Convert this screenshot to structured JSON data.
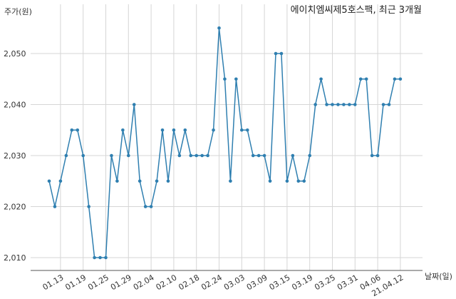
{
  "chart_data": {
    "type": "line",
    "title": "에이치엠씨제5호스팩, 최근 3개월",
    "xlabel": "날짜(일)",
    "ylabel": "주가(원)",
    "ylim": [
      2007,
      2058
    ],
    "yticks": [
      2010,
      2020,
      2030,
      2040,
      2050
    ],
    "ytick_labels": [
      "2,010",
      "2,020",
      "2,030",
      "2,040",
      "2,050"
    ],
    "grid": true,
    "line_color": "#2f7fb0",
    "x": [
      "01.11",
      "01.12",
      "01.13",
      "01.14",
      "01.15",
      "01.18",
      "01.19",
      "01.20",
      "01.21",
      "01.22",
      "01.25",
      "01.26",
      "01.27",
      "01.28",
      "01.29",
      "02.01",
      "02.02",
      "02.03",
      "02.04",
      "02.05",
      "02.08",
      "02.09",
      "02.10",
      "02.15",
      "02.16",
      "02.17",
      "02.18",
      "02.19",
      "02.22",
      "02.23",
      "02.24",
      "02.25",
      "02.26",
      "03.02",
      "03.03",
      "03.04",
      "03.05",
      "03.08",
      "03.09",
      "03.10",
      "03.11",
      "03.12",
      "03.15",
      "03.16",
      "03.17",
      "03.18",
      "03.19",
      "03.22",
      "03.23",
      "03.24",
      "03.25",
      "03.26",
      "03.29",
      "03.30",
      "03.31",
      "04.01",
      "04.02",
      "04.05",
      "04.06",
      "04.07",
      "04.08",
      "04.09",
      "21.04.12"
    ],
    "values": [
      2025,
      2020,
      2025,
      2030,
      2035,
      2035,
      2030,
      2020,
      2010,
      2010,
      2010,
      2030,
      2025,
      2035,
      2030,
      2040,
      2025,
      2020,
      2020,
      2025,
      2035,
      2025,
      2035,
      2030,
      2035,
      2030,
      2030,
      2030,
      2030,
      2035,
      2055,
      2045,
      2025,
      2045,
      2035,
      2035,
      2030,
      2030,
      2030,
      2025,
      2050,
      2050,
      2025,
      2030,
      2025,
      2025,
      2030,
      2040,
      2045,
      2040,
      2040,
      2040,
      2040,
      2040,
      2040,
      2045,
      2045,
      2030,
      2030,
      2040,
      2040,
      2045,
      2045
    ],
    "xtick_labels": [
      "01.13",
      "01.19",
      "01.25",
      "01.29",
      "02.04",
      "02.10",
      "02.18",
      "02.24",
      "03.03",
      "03.09",
      "03.15",
      "03.19",
      "03.25",
      "03.31",
      "04.06",
      "21.04.12"
    ],
    "xtick_index": [
      2,
      6,
      10,
      14,
      18,
      22,
      26,
      30,
      34,
      38,
      42,
      46,
      50,
      54,
      58,
      62
    ]
  }
}
